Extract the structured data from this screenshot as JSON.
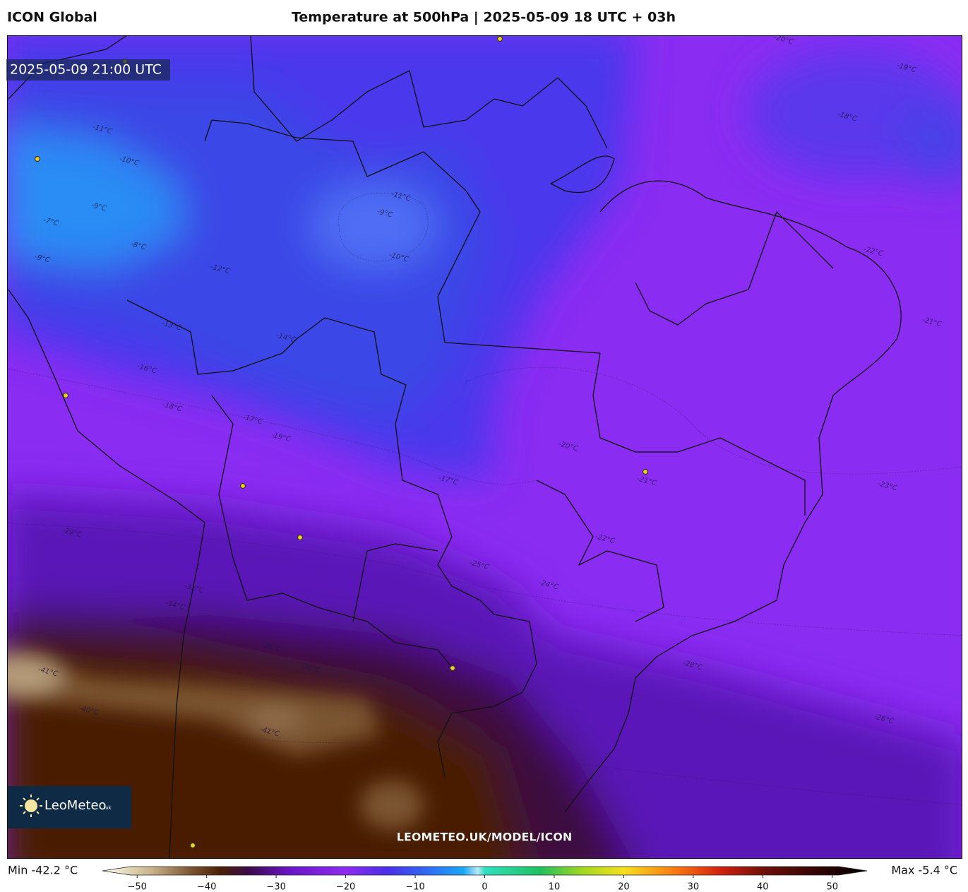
{
  "header": {
    "model": "ICON Global",
    "title": "Temperature at 500hPa | 2025-05-09 18 UTC + 03h"
  },
  "map": {
    "valid_time": "2025-05-09 21:00 UTC",
    "logo": {
      "name": "LeoMeteo",
      "suffix": ".uk"
    },
    "url": "LEOMETEO.UK/MODEL/ICON",
    "contour_labels": [
      "-11°C",
      "-10°C",
      "-9°C",
      "-8°C",
      "-7°C",
      "-9°C",
      "-12°C",
      "-11°C",
      "-9°C",
      "-10°C",
      "-13°C",
      "-14°C",
      "-16°C",
      "-18°C",
      "-17°C",
      "-19°C",
      "-20°C",
      "-21°C",
      "-17°C",
      "-22°C",
      "-23°C",
      "-25°C",
      "-24°C",
      "-29°C",
      "-32°C",
      "-34°C",
      "-36°C",
      "-38°C",
      "-40°C",
      "-41°C",
      "-41°C",
      "-26°C",
      "-28°C",
      "-19°C",
      "-18°C",
      "-20°C",
      "-21°C",
      "-22°C"
    ]
  },
  "colorbar": {
    "min_label": "Min -42.2 °C",
    "max_label": "Max -5.4 °C",
    "lim": [
      -55,
      55
    ],
    "ticks": [
      {
        "value": -50,
        "label": "−50"
      },
      {
        "value": -40,
        "label": "−40"
      },
      {
        "value": -30,
        "label": "−30"
      },
      {
        "value": -20,
        "label": "−20"
      },
      {
        "value": -10,
        "label": "−10"
      },
      0,
      10,
      20,
      30,
      40,
      50
    ],
    "stops": [
      {
        "value": -55,
        "color": "#fffef0"
      },
      {
        "value": -48,
        "color": "#c9b48c"
      },
      {
        "value": -42,
        "color": "#7a5130"
      },
      {
        "value": -38,
        "color": "#4a1f05"
      },
      {
        "value": -34,
        "color": "#3a0a4a"
      },
      {
        "value": -28,
        "color": "#6a16c8"
      },
      {
        "value": -20,
        "color": "#8d2cf0"
      },
      {
        "value": -14,
        "color": "#4a2ee8"
      },
      {
        "value": -8,
        "color": "#2f6df5"
      },
      {
        "value": -3,
        "color": "#1aa8f5"
      },
      {
        "value": -1,
        "color": "#b8e8f5"
      },
      {
        "value": 0,
        "color": "#30e0c0"
      },
      {
        "value": 8,
        "color": "#20c060"
      },
      {
        "value": 14,
        "color": "#a0d820"
      },
      {
        "value": 20,
        "color": "#f8e020"
      },
      {
        "value": 28,
        "color": "#f87010"
      },
      {
        "value": 34,
        "color": "#d02010"
      },
      {
        "value": 40,
        "color": "#701008"
      },
      {
        "value": 48,
        "color": "#300404"
      },
      {
        "value": 55,
        "color": "#000000"
      }
    ]
  }
}
